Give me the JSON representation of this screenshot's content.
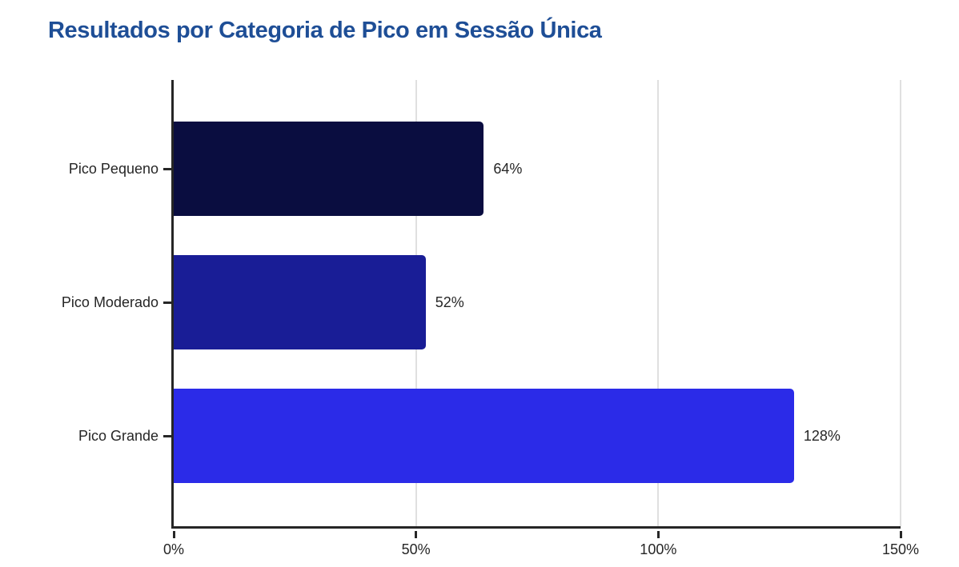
{
  "title": "Resultados por Categoria de Pico em Sessão Única",
  "chart_data": {
    "type": "bar",
    "orientation": "horizontal",
    "title": "Resultados por Categoria de Pico em Sessão Única",
    "categories": [
      "Pico Pequeno",
      "Pico Moderado",
      "Pico Grande"
    ],
    "values": [
      64,
      52,
      128
    ],
    "value_labels": [
      "64%",
      "52%",
      "128%"
    ],
    "bar_colors": [
      "#0a0d40",
      "#191d96",
      "#2b2be8"
    ],
    "xlabel": "",
    "ylabel": "",
    "xlim": [
      0,
      150
    ],
    "x_ticks": [
      {
        "value": 0,
        "label": "0%"
      },
      {
        "value": 50,
        "label": "50%"
      },
      {
        "value": 100,
        "label": "100%"
      },
      {
        "value": 150,
        "label": "150%"
      }
    ],
    "grid": "vertical-gridlines-at-ticks",
    "legend": "none",
    "colors": {
      "title": "#1e4e96",
      "axis": "#262626",
      "text": "#262626",
      "gridline": "#e0e0e0",
      "background": "#ffffff"
    }
  }
}
